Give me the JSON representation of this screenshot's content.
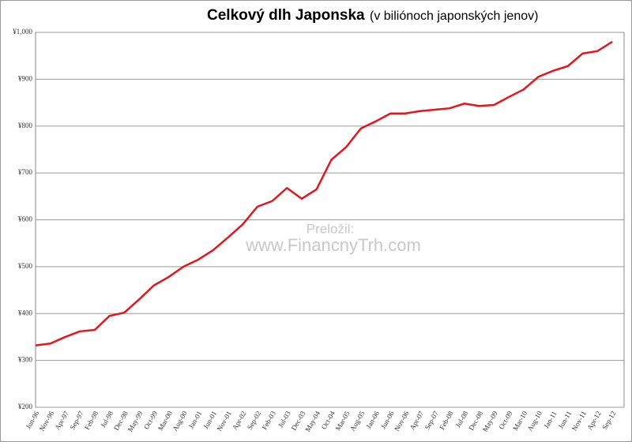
{
  "chart_data": {
    "type": "line",
    "title": "Celkový dlh Japonska",
    "subtitle": "(v biliónoch japonských jenov)",
    "annotations": [
      "Preložil:",
      "www.FinancnyTrh.com"
    ],
    "categories": [
      "Jun-96",
      "Nov-96",
      "Apr-97",
      "Sep-97",
      "Feb-98",
      "Jul-98",
      "Dec-98",
      "May-99",
      "Oct-99",
      "Mar-00",
      "Aug-00",
      "Jan-01",
      "Jun-01",
      "Nov-01",
      "Apr-02",
      "Sep-02",
      "Feb-03",
      "Jul-03",
      "Dec-03",
      "May-04",
      "Oct-04",
      "Mar-05",
      "Aug-05",
      "Jan-06",
      "Jun-06",
      "Nov-06",
      "Apr-07",
      "Sep-07",
      "Feb-08",
      "Jul-08",
      "Dec-08",
      "May-09",
      "Oct-09",
      "Mar-10",
      "Aug-10",
      "Jan-11",
      "Jun-11",
      "Nov-11",
      "Apr-12",
      "Sep-12"
    ],
    "series": [
      {
        "name": "Celkový dlh",
        "color": "#e3161e",
        "values": [
          332,
          336,
          350,
          362,
          365,
          395,
          402,
          430,
          460,
          478,
          500,
          515,
          535,
          562,
          590,
          628,
          640,
          668,
          645,
          665,
          728,
          755,
          795,
          810,
          827,
          827,
          832,
          835,
          838,
          848,
          843,
          845,
          862,
          878,
          905,
          918,
          928,
          955,
          960,
          980
        ]
      }
    ],
    "ylim": [
      200,
      1000
    ],
    "yticks": [
      {
        "value": 200,
        "label": "¥200"
      },
      {
        "value": 300,
        "label": "¥300"
      },
      {
        "value": 400,
        "label": "¥400"
      },
      {
        "value": 500,
        "label": "¥500"
      },
      {
        "value": 600,
        "label": "¥600"
      },
      {
        "value": 700,
        "label": "¥700"
      },
      {
        "value": 800,
        "label": "¥800"
      },
      {
        "value": 900,
        "label": "¥900"
      },
      {
        "value": 1000,
        "label": "¥1,000"
      }
    ],
    "grid": true
  }
}
